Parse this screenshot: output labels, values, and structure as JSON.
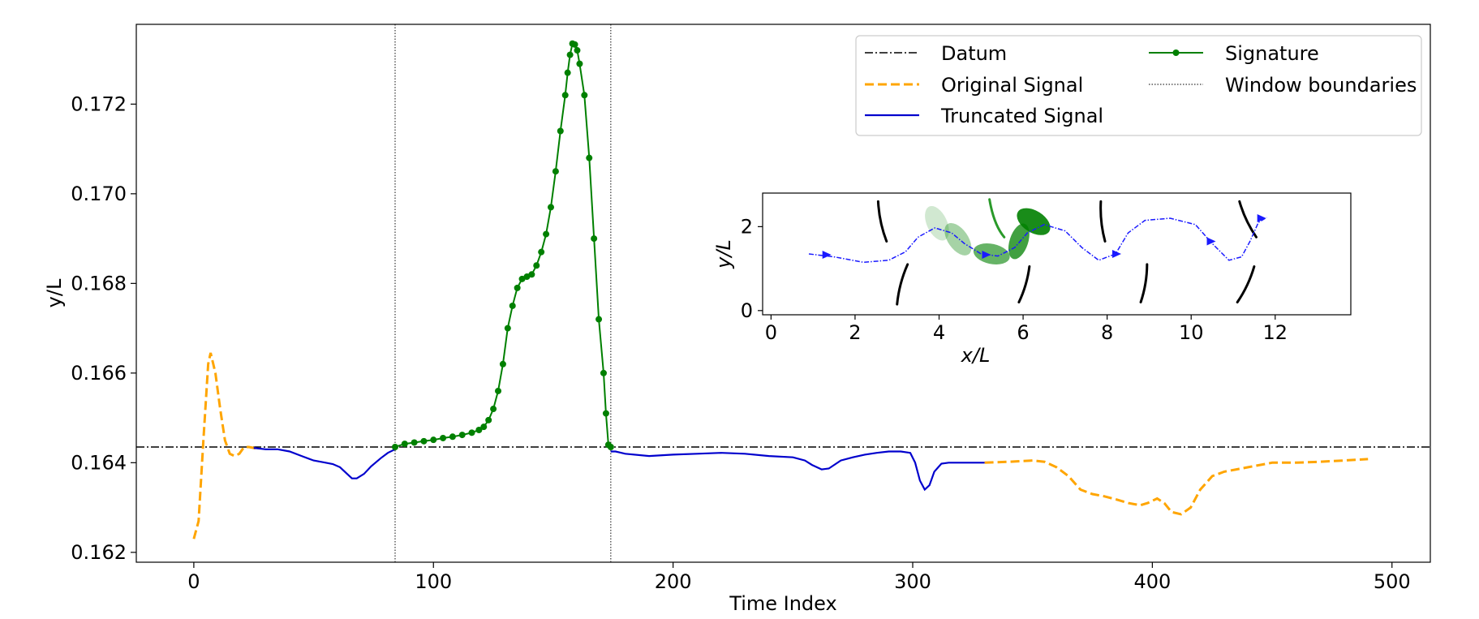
{
  "chart_data": [
    {
      "type": "line",
      "title": "",
      "xlabel": "Time Index",
      "ylabel": "y/L",
      "xlim": [
        -24,
        516
      ],
      "ylim": [
        0.16178,
        0.17378
      ],
      "xticks": [
        0,
        100,
        200,
        300,
        400,
        500
      ],
      "yticks": [
        0.162,
        0.164,
        0.166,
        0.168,
        0.17,
        0.172
      ],
      "ytick_labels": [
        "0.162",
        "0.164",
        "0.166",
        "0.168",
        "0.170",
        "0.172"
      ],
      "grid": false,
      "legend": {
        "placement": "top-right",
        "entries": [
          "Datum",
          "Original Signal",
          "Truncated Signal",
          "Signature",
          "Window boundaries"
        ]
      },
      "datum": 0.16435,
      "window_boundaries": [
        84,
        174
      ],
      "series": [
        {
          "name": "Original Signal",
          "style": "dashed",
          "color": "#FFA500",
          "points": [
            [
              0,
              0.1623
            ],
            [
              2,
              0.1627
            ],
            [
              4,
              0.1645
            ],
            [
              6,
              0.1662
            ],
            [
              7,
              0.16645
            ],
            [
              9,
              0.166
            ],
            [
              11,
              0.1652
            ],
            [
              13,
              0.1645
            ],
            [
              15,
              0.1642
            ],
            [
              17,
              0.16415
            ],
            [
              19,
              0.1642
            ],
            [
              21,
              0.16435
            ],
            [
              23,
              0.16435
            ],
            [
              25,
              0.16433
            ],
            [
              27,
              0.1643
            ],
            [
              330,
              0.164
            ],
            [
              340,
              0.16402
            ],
            [
              350,
              0.16405
            ],
            [
              355,
              0.16402
            ],
            [
              360,
              0.1639
            ],
            [
              365,
              0.1637
            ],
            [
              370,
              0.1634
            ],
            [
              375,
              0.1633
            ],
            [
              380,
              0.16325
            ],
            [
              385,
              0.16318
            ],
            [
              390,
              0.1631
            ],
            [
              395,
              0.16305
            ],
            [
              398,
              0.1631
            ],
            [
              402,
              0.1632
            ],
            [
              405,
              0.1631
            ],
            [
              408,
              0.1629
            ],
            [
              412,
              0.16285
            ],
            [
              416,
              0.163
            ],
            [
              420,
              0.1634
            ],
            [
              425,
              0.1637
            ],
            [
              430,
              0.1638
            ],
            [
              440,
              0.1639
            ],
            [
              450,
              0.164
            ],
            [
              460,
              0.164
            ],
            [
              470,
              0.16402
            ],
            [
              480,
              0.16405
            ],
            [
              490,
              0.16408
            ]
          ]
        },
        {
          "name": "Truncated Signal",
          "style": "solid",
          "color": "#0000CD",
          "points": [
            [
              25,
              0.16433
            ],
            [
              30,
              0.1643
            ],
            [
              35,
              0.1643
            ],
            [
              40,
              0.16425
            ],
            [
              45,
              0.16415
            ],
            [
              50,
              0.16405
            ],
            [
              55,
              0.164
            ],
            [
              58,
              0.16397
            ],
            [
              61,
              0.1639
            ],
            [
              64,
              0.16375
            ],
            [
              66,
              0.16365
            ],
            [
              68,
              0.16365
            ],
            [
              71,
              0.16375
            ],
            [
              74,
              0.16392
            ],
            [
              78,
              0.1641
            ],
            [
              81,
              0.16422
            ],
            [
              84,
              0.1643
            ],
            [
              174,
              0.16425
            ],
            [
              176,
              0.16425
            ],
            [
              180,
              0.1642
            ],
            [
              190,
              0.16415
            ],
            [
              200,
              0.16418
            ],
            [
              210,
              0.1642
            ],
            [
              220,
              0.16422
            ],
            [
              230,
              0.1642
            ],
            [
              240,
              0.16415
            ],
            [
              250,
              0.16412
            ],
            [
              255,
              0.16405
            ],
            [
              258,
              0.16395
            ],
            [
              262,
              0.16385
            ],
            [
              265,
              0.16387
            ],
            [
              270,
              0.16405
            ],
            [
              275,
              0.16412
            ],
            [
              280,
              0.16418
            ],
            [
              285,
              0.16422
            ],
            [
              290,
              0.16425
            ],
            [
              295,
              0.16425
            ],
            [
              299,
              0.16422
            ],
            [
              301,
              0.164
            ],
            [
              303,
              0.1636
            ],
            [
              305,
              0.1634
            ],
            [
              307,
              0.1635
            ],
            [
              309,
              0.1638
            ],
            [
              312,
              0.16398
            ],
            [
              315,
              0.164
            ],
            [
              320,
              0.164
            ],
            [
              330,
              0.164
            ]
          ]
        },
        {
          "name": "Signature",
          "style": "solid-markers",
          "color": "#008000",
          "points": [
            [
              84,
              0.16435
            ],
            [
              88,
              0.16442
            ],
            [
              92,
              0.16445
            ],
            [
              96,
              0.16448
            ],
            [
              100,
              0.16451
            ],
            [
              104,
              0.16455
            ],
            [
              108,
              0.16458
            ],
            [
              112,
              0.16462
            ],
            [
              116,
              0.16467
            ],
            [
              119,
              0.16473
            ],
            [
              121,
              0.1648
            ],
            [
              123,
              0.16495
            ],
            [
              125,
              0.1652
            ],
            [
              127,
              0.1656
            ],
            [
              129,
              0.1662
            ],
            [
              131,
              0.167
            ],
            [
              133,
              0.1675
            ],
            [
              135,
              0.1679
            ],
            [
              137,
              0.1681
            ],
            [
              139,
              0.16815
            ],
            [
              141,
              0.1682
            ],
            [
              143,
              0.1684
            ],
            [
              145,
              0.1687
            ],
            [
              147,
              0.1691
            ],
            [
              149,
              0.1697
            ],
            [
              151,
              0.1705
            ],
            [
              153,
              0.1714
            ],
            [
              155,
              0.1722
            ],
            [
              156,
              0.1727
            ],
            [
              157,
              0.1731
            ],
            [
              158,
              0.17335
            ],
            [
              159,
              0.17333
            ],
            [
              160,
              0.1732
            ],
            [
              161,
              0.1729
            ],
            [
              163,
              0.1722
            ],
            [
              165,
              0.1708
            ],
            [
              167,
              0.169
            ],
            [
              169,
              0.1672
            ],
            [
              171,
              0.166
            ],
            [
              172,
              0.1651
            ],
            [
              173,
              0.1644
            ],
            [
              174,
              0.16435
            ]
          ]
        }
      ]
    },
    {
      "type": "scatter",
      "title": "",
      "xlabel": "x/L",
      "ylabel": "y/L",
      "xlim": [
        -0.2,
        13.8
      ],
      "ylim": [
        -0.1,
        2.8
      ],
      "xticks": [
        0,
        2,
        4,
        6,
        8,
        10,
        12
      ],
      "yticks": [
        0,
        2
      ],
      "path": [
        [
          0.9,
          1.35
        ],
        [
          1.5,
          1.28
        ],
        [
          2.2,
          1.15
        ],
        [
          2.8,
          1.2
        ],
        [
          3.2,
          1.4
        ],
        [
          3.5,
          1.75
        ],
        [
          3.9,
          1.97
        ],
        [
          4.3,
          1.85
        ],
        [
          4.6,
          1.6
        ],
        [
          5.0,
          1.35
        ],
        [
          5.4,
          1.3
        ],
        [
          5.8,
          1.5
        ],
        [
          6.1,
          1.85
        ],
        [
          6.5,
          2.05
        ],
        [
          7.0,
          1.9
        ],
        [
          7.4,
          1.5
        ],
        [
          7.8,
          1.2
        ],
        [
          8.2,
          1.35
        ],
        [
          8.5,
          1.85
        ],
        [
          8.9,
          2.15
        ],
        [
          9.5,
          2.2
        ],
        [
          10.1,
          2.05
        ],
        [
          10.5,
          1.6
        ],
        [
          10.9,
          1.2
        ],
        [
          11.2,
          1.28
        ],
        [
          11.4,
          1.65
        ],
        [
          11.6,
          2.1
        ],
        [
          11.8,
          2.22
        ]
      ],
      "arrows": [
        [
          1.3,
          1.33
        ],
        [
          5.1,
          1.33
        ],
        [
          8.2,
          1.35
        ],
        [
          10.45,
          1.65
        ],
        [
          11.65,
          2.2
        ]
      ],
      "blades": [
        {
          "x": [
            2.55,
            2.75
          ],
          "y": [
            2.6,
            1.65
          ]
        },
        {
          "x": [
            3.25,
            3.0
          ],
          "y": [
            1.1,
            0.15
          ]
        },
        {
          "x": [
            5.9,
            6.15
          ],
          "y": [
            0.2,
            1.05
          ]
        },
        {
          "x": [
            7.85,
            7.95
          ],
          "y": [
            2.6,
            1.65
          ]
        },
        {
          "x": [
            8.8,
            8.95
          ],
          "y": [
            0.2,
            1.1
          ]
        },
        {
          "x": [
            11.15,
            11.55
          ],
          "y": [
            2.6,
            1.75
          ]
        },
        {
          "x": [
            11.1,
            11.5
          ],
          "y": [
            0.2,
            1.05
          ]
        }
      ],
      "signature_shapes": [
        {
          "cx": 3.95,
          "cy": 2.08,
          "rx": 0.24,
          "ry": 0.44,
          "rotate": -25,
          "opacity": 0.18
        },
        {
          "cx": 4.45,
          "cy": 1.7,
          "rx": 0.24,
          "ry": 0.44,
          "rotate": -35,
          "opacity": 0.35
        },
        {
          "cx": 5.25,
          "cy": 1.35,
          "rx": 0.44,
          "ry": 0.24,
          "rotate": 12,
          "opacity": 0.6
        },
        {
          "cx": 5.9,
          "cy": 1.65,
          "rx": 0.22,
          "ry": 0.44,
          "rotate": 18,
          "opacity": 0.75
        },
        {
          "cx": 6.25,
          "cy": 2.12,
          "rx": 0.44,
          "ry": 0.26,
          "rotate": 32,
          "opacity": 0.9
        }
      ]
    }
  ]
}
